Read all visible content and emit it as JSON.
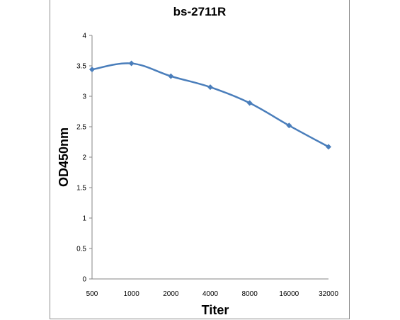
{
  "chart_data": {
    "type": "line",
    "title": "bs-2711R",
    "xlabel": "Titer",
    "ylabel": "OD450nm",
    "categories": [
      "500",
      "1000",
      "2000",
      "4000",
      "8000",
      "16000",
      "32000"
    ],
    "series": [
      {
        "values": [
          3.44,
          3.54,
          3.33,
          3.15,
          2.89,
          2.52,
          2.17
        ],
        "color": "#4a7ebb",
        "marker": "diamond"
      }
    ],
    "yticks": [
      "0",
      "0.5",
      "1",
      "1.5",
      "2",
      "2.5",
      "3",
      "3.5",
      "4"
    ],
    "ylim": [
      0,
      4
    ],
    "grid": false,
    "legend": "none",
    "smooth": true
  }
}
